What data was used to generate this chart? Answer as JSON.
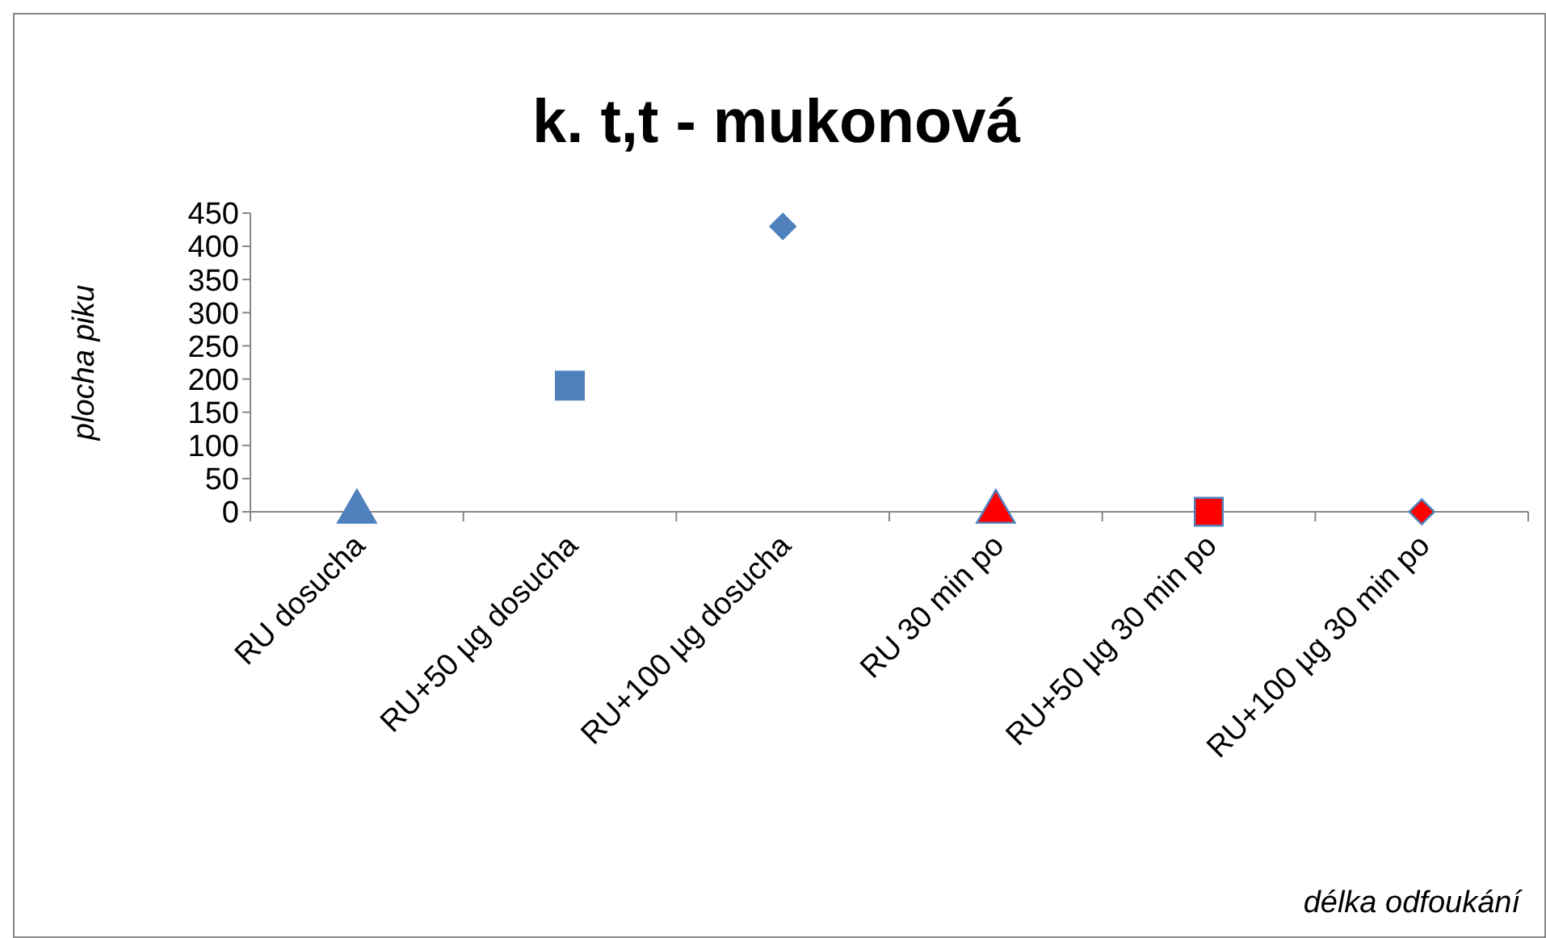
{
  "chart_data": {
    "type": "scatter",
    "title": "k. t,t - mukonová",
    "xlabel": "délka odfoukání",
    "ylabel": "plocha piku",
    "categories": [
      "RU dosucha",
      "RU+50 µg dosucha",
      "RU+100 µg dosucha",
      "RU 30 min po",
      "RU+50 µg 30 min po",
      "RU+100 µg 30 min po"
    ],
    "ylim": [
      0,
      450
    ],
    "yticks": [
      0,
      50,
      100,
      150,
      200,
      250,
      300,
      350,
      400,
      450
    ],
    "grid": false,
    "series": [
      {
        "x": [
          "RU dosucha"
        ],
        "values": [
          0
        ],
        "color": "#4f81bd",
        "marker": "triangle"
      },
      {
        "x": [
          "RU+50 µg dosucha"
        ],
        "values": [
          190
        ],
        "color": "#4f81bd",
        "marker": "square"
      },
      {
        "x": [
          "RU+100 µg dosucha"
        ],
        "values": [
          430
        ],
        "color": "#4f81bd",
        "marker": "diamond"
      },
      {
        "x": [
          "RU 30 min po"
        ],
        "values": [
          0
        ],
        "color": "#ff0000",
        "marker": "triangle"
      },
      {
        "x": [
          "RU+50 µg 30 min po"
        ],
        "values": [
          0
        ],
        "color": "#ff0000",
        "marker": "square"
      },
      {
        "x": [
          "RU+100 µg 30 min po"
        ],
        "values": [
          0
        ],
        "color": "#ff0000",
        "marker": "diamond"
      }
    ]
  }
}
